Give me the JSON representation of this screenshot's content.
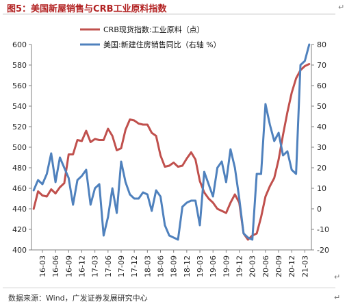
{
  "title": "图5：美国新屋销售与CRB工业原料指数",
  "source": "数据来源：Wind，广发证券发展研究中心",
  "para_mark": "↵",
  "chart_data": {
    "type": "line",
    "x_ticks": [
      "16-03",
      "16-06",
      "16-09",
      "16-12",
      "17-03",
      "17-06",
      "17-09",
      "17-12",
      "18-03",
      "18-06",
      "18-09",
      "18-12",
      "19-03",
      "19-06",
      "19-09",
      "19-12",
      "20-03",
      "20-06",
      "20-09",
      "20-12",
      "21-03"
    ],
    "x": [
      "16-01",
      "16-02",
      "16-03",
      "16-04",
      "16-05",
      "16-06",
      "16-07",
      "16-08",
      "16-09",
      "16-10",
      "16-11",
      "16-12",
      "17-01",
      "17-02",
      "17-03",
      "17-04",
      "17-05",
      "17-06",
      "17-07",
      "17-08",
      "17-09",
      "17-10",
      "17-11",
      "17-12",
      "18-01",
      "18-02",
      "18-03",
      "18-04",
      "18-05",
      "18-06",
      "18-07",
      "18-08",
      "18-09",
      "18-10",
      "18-11",
      "18-12",
      "19-01",
      "19-02",
      "19-03",
      "19-04",
      "19-05",
      "19-06",
      "19-07",
      "19-08",
      "19-09",
      "19-10",
      "19-11",
      "19-12",
      "20-01",
      "20-02",
      "20-03",
      "20-04",
      "20-05",
      "20-06",
      "20-07",
      "20-08",
      "20-09",
      "20-10",
      "20-11",
      "20-12",
      "21-01",
      "21-02",
      "21-03",
      "21-04"
    ],
    "y_left": {
      "min": 400,
      "max": 600,
      "step": 20,
      "ticks": [
        "400",
        "420",
        "440",
        "460",
        "480",
        "500",
        "520",
        "540",
        "560",
        "580",
        "600"
      ]
    },
    "y_right": {
      "min": -20,
      "max": 80,
      "step": 10,
      "ticks": [
        "-20",
        "-10",
        "0",
        "10",
        "20",
        "30",
        "40",
        "50",
        "60",
        "70",
        "80"
      ]
    },
    "legend": "top-center",
    "series": [
      {
        "name": "CRB现货指数:工业原料（点）",
        "axis": "left",
        "color": "#c0504d",
        "values": [
          440,
          457,
          453,
          452,
          459,
          455,
          461,
          465,
          493,
          493,
          507,
          506,
          516,
          505,
          508,
          507,
          507,
          518,
          511,
          497,
          499,
          517,
          527,
          526,
          523,
          522,
          522,
          514,
          511,
          492,
          481,
          482,
          485,
          481,
          482,
          489,
          495,
          488,
          467,
          456,
          450,
          446,
          440,
          438,
          436,
          446,
          454,
          446,
          416,
          410,
          414,
          416,
          432,
          452,
          462,
          470,
          488,
          512,
          534,
          553,
          567,
          575,
          579,
          581
        ]
      },
      {
        "name": "美国:新建住房销售同比（右轴 %）",
        "axis": "right",
        "color": "#4f81bd",
        "values": [
          9,
          14,
          12,
          17,
          27,
          13,
          25,
          20,
          15,
          2,
          14,
          16,
          19,
          2,
          10,
          12,
          -13,
          -4,
          10,
          -2,
          23,
          13,
          7,
          5,
          5,
          8,
          7,
          -1,
          9,
          6,
          -8,
          -13,
          -14,
          -15,
          1,
          3,
          4,
          4,
          -8,
          18,
          12,
          6,
          20,
          23,
          13,
          29,
          20,
          5,
          -12,
          -14,
          -15,
          17,
          17,
          51,
          41,
          33,
          37,
          26,
          28,
          19,
          17,
          70,
          72,
          80
        ]
      }
    ]
  }
}
